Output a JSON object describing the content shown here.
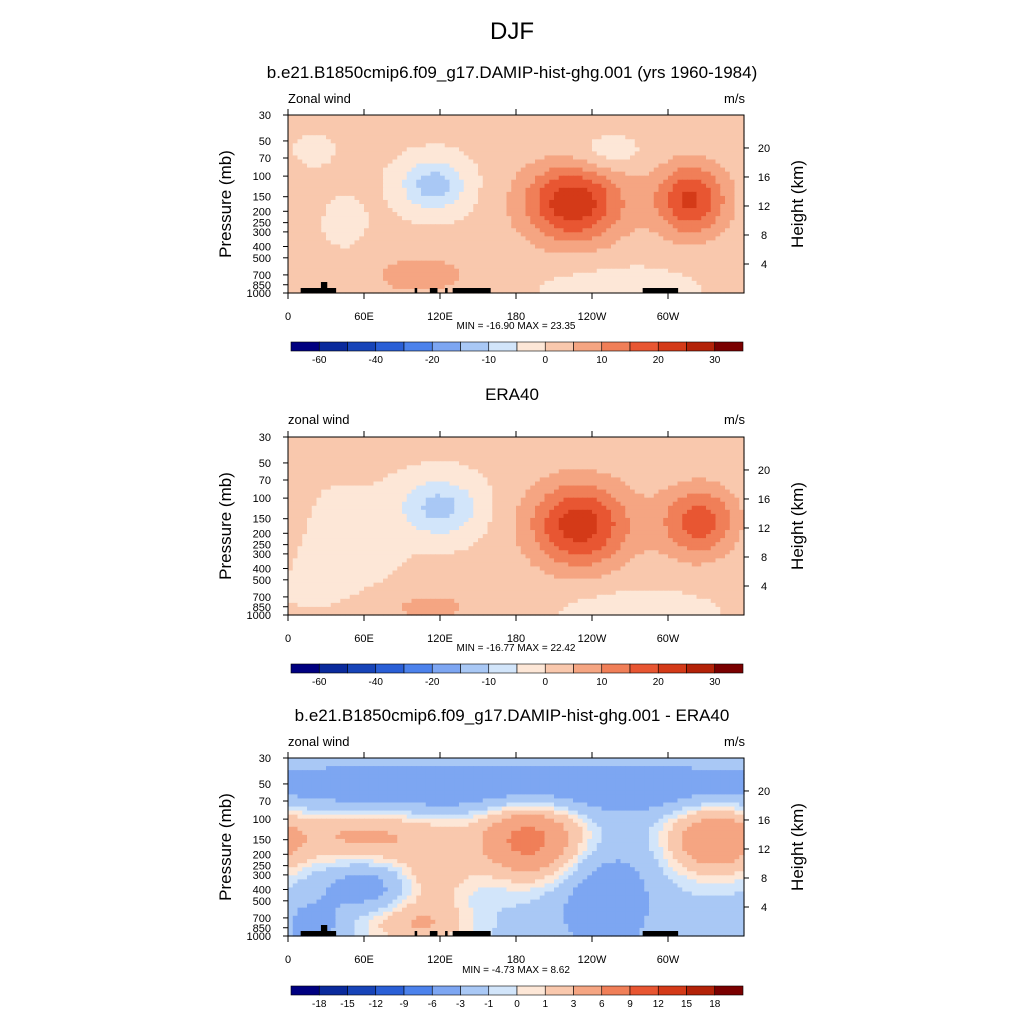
{
  "figure": {
    "title": "DJF"
  },
  "pressure_ticks": [
    "30",
    "50",
    "70",
    "100",
    "150",
    "200",
    "250",
    "300",
    "400",
    "500",
    "700",
    "850",
    "1000"
  ],
  "height_ticks": [
    "20",
    "16",
    "12",
    "8",
    "4"
  ],
  "lon_ticks": [
    "0",
    "60E",
    "120E",
    "180",
    "120W",
    "60W"
  ],
  "panels": [
    {
      "title": "b.e21.B1850cmip6.f09_g17.DAMIP-hist-ghg.001 (yrs 1960-1984)",
      "left_label": "Zonal wind",
      "right_label": "m/s",
      "ylabel": "Pressure (mb)",
      "y2label": "Height (km)",
      "stats": "MIN = -16.90  MAX =  23.35",
      "colorbar_labels": [
        "-60",
        "-40",
        "-20",
        "-10",
        "0",
        "10",
        "20",
        "30"
      ]
    },
    {
      "title": "ERA40",
      "left_label": "zonal wind",
      "right_label": "m/s",
      "ylabel": "Pressure (mb)",
      "y2label": "Height (km)",
      "stats": "MIN = -16.77  MAX =  22.42",
      "colorbar_labels": [
        "-60",
        "-40",
        "-20",
        "-10",
        "0",
        "10",
        "20",
        "30"
      ]
    },
    {
      "title": "b.e21.B1850cmip6.f09_g17.DAMIP-hist-ghg.001 - ERA40",
      "left_label": "zonal wind",
      "right_label": "m/s",
      "ylabel": "Pressure (mb)",
      "y2label": "Height (km)",
      "stats": "MIN =  -4.73  MAX =   8.62",
      "colorbar_labels": [
        "-18",
        "-15",
        "-12",
        "-9",
        "-6",
        "-3",
        "-1",
        "0",
        "1",
        "3",
        "6",
        "9",
        "12",
        "15",
        "18"
      ]
    }
  ],
  "colors": {
    "palette16": [
      "#000080",
      "#0a2a9c",
      "#1744b8",
      "#2a5fd6",
      "#4c82ec",
      "#7da6f2",
      "#a9c8f5",
      "#d2e5fa",
      "#fde7d7",
      "#f9c8ad",
      "#f5a582",
      "#f07f58",
      "#e85632",
      "#d43a18",
      "#b32208",
      "#7a0000"
    ]
  },
  "chart_data": [
    {
      "type": "heatmap",
      "title": "b.e21.B1850cmip6.f09_g17.DAMIP-hist-ghg.001 (yrs 1960-1984)",
      "variable": "Zonal wind",
      "units": "m/s",
      "xlabel": "",
      "ylabel": "Pressure (mb)",
      "y2label": "Height (km)",
      "x_ticks": [
        "0",
        "60E",
        "120E",
        "180",
        "120W",
        "60W"
      ],
      "y_log_scale": true,
      "ylim": [
        1000,
        30
      ],
      "levels": [
        -70,
        -60,
        -50,
        -40,
        -30,
        -20,
        -15,
        -10,
        -5,
        0,
        5,
        10,
        15,
        20,
        25,
        30,
        35
      ],
      "min": -16.9,
      "max": 23.35,
      "features": [
        {
          "kind": "westerly jet",
          "lon": 225,
          "pressure": 170,
          "value": 23
        },
        {
          "kind": "westerly jet",
          "lon": 318,
          "pressure": 160,
          "value": 20
        },
        {
          "kind": "easterly",
          "lon": 115,
          "pressure": 120,
          "value": -14
        },
        {
          "kind": "westerly",
          "lon": 105,
          "pressure": 730,
          "value": 5
        }
      ]
    },
    {
      "type": "heatmap",
      "title": "ERA40",
      "variable": "zonal wind",
      "units": "m/s",
      "xlabel": "",
      "ylabel": "Pressure (mb)",
      "y2label": "Height (km)",
      "x_ticks": [
        "0",
        "60E",
        "120E",
        "180",
        "120W",
        "60W"
      ],
      "y_log_scale": true,
      "ylim": [
        1000,
        30
      ],
      "levels": [
        -70,
        -60,
        -50,
        -40,
        -30,
        -20,
        -15,
        -10,
        -5,
        0,
        5,
        10,
        15,
        20,
        25,
        30,
        35
      ],
      "min": -16.77,
      "max": 22.42,
      "features": [
        {
          "kind": "westerly jet",
          "lon": 230,
          "pressure": 170,
          "value": 22
        },
        {
          "kind": "westerly jet",
          "lon": 325,
          "pressure": 160,
          "value": 17
        },
        {
          "kind": "easterly",
          "lon": 120,
          "pressure": 120,
          "value": -13
        }
      ]
    },
    {
      "type": "heatmap",
      "title": "b.e21.B1850cmip6.f09_g17.DAMIP-hist-ghg.001 - ERA40",
      "variable": "zonal wind",
      "units": "m/s",
      "xlabel": "",
      "ylabel": "Pressure (mb)",
      "y2label": "Height (km)",
      "x_ticks": [
        "0",
        "60E",
        "120E",
        "180",
        "120W",
        "60W"
      ],
      "y_log_scale": true,
      "ylim": [
        1000,
        30
      ],
      "levels": [
        -21,
        -18,
        -15,
        -12,
        -9,
        -6,
        -3,
        -1,
        0,
        1,
        3,
        6,
        9,
        12,
        15,
        18,
        21
      ],
      "min": -4.73,
      "max": 8.62,
      "features": [
        {
          "kind": "positive difference",
          "lon": 190,
          "pressure": 150,
          "value": 8.6
        },
        {
          "kind": "positive difference",
          "lon": 335,
          "pressure": 150,
          "value": 7
        },
        {
          "kind": "negative difference",
          "lon": 250,
          "pressure": 500,
          "value": -4
        },
        {
          "kind": "negative band",
          "lon": 180,
          "pressure": 55,
          "value": -4
        }
      ]
    }
  ]
}
